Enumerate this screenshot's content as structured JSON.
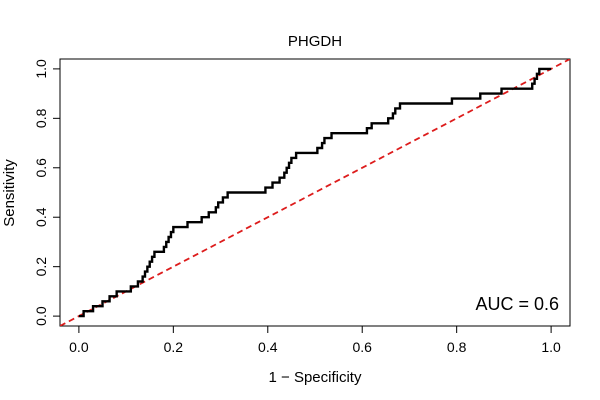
{
  "chart_data": {
    "type": "line",
    "title": "PHGDH",
    "xlabel": "1 − Specificity",
    "ylabel": "Sensitivity",
    "xlim": [
      -0.04,
      1.04
    ],
    "ylim": [
      -0.04,
      1.04
    ],
    "xticks": [
      0.0,
      0.2,
      0.4,
      0.6,
      0.8,
      1.0
    ],
    "xtick_labels": [
      "0.0",
      "0.2",
      "0.4",
      "0.6",
      "0.8",
      "1.0"
    ],
    "yticks": [
      0.0,
      0.2,
      0.4,
      0.6,
      0.8,
      1.0
    ],
    "ytick_labels": [
      "0.0",
      "0.2",
      "0.4",
      "0.6",
      "0.8",
      "1.0"
    ],
    "grid": false,
    "annotation": "AUC = 0.6",
    "series": [
      {
        "name": "ROC curve",
        "color": "#000000",
        "points": [
          [
            0.0,
            0.0
          ],
          [
            0.01,
            0.0
          ],
          [
            0.01,
            0.02
          ],
          [
            0.03,
            0.02
          ],
          [
            0.03,
            0.04
          ],
          [
            0.05,
            0.04
          ],
          [
            0.05,
            0.06
          ],
          [
            0.065,
            0.06
          ],
          [
            0.065,
            0.08
          ],
          [
            0.08,
            0.08
          ],
          [
            0.08,
            0.1
          ],
          [
            0.11,
            0.1
          ],
          [
            0.11,
            0.12
          ],
          [
            0.125,
            0.12
          ],
          [
            0.125,
            0.14
          ],
          [
            0.135,
            0.14
          ],
          [
            0.135,
            0.16
          ],
          [
            0.14,
            0.16
          ],
          [
            0.14,
            0.18
          ],
          [
            0.145,
            0.18
          ],
          [
            0.145,
            0.2
          ],
          [
            0.15,
            0.2
          ],
          [
            0.15,
            0.22
          ],
          [
            0.155,
            0.22
          ],
          [
            0.155,
            0.24
          ],
          [
            0.16,
            0.24
          ],
          [
            0.16,
            0.26
          ],
          [
            0.18,
            0.26
          ],
          [
            0.18,
            0.28
          ],
          [
            0.185,
            0.28
          ],
          [
            0.185,
            0.3
          ],
          [
            0.19,
            0.3
          ],
          [
            0.19,
            0.32
          ],
          [
            0.195,
            0.32
          ],
          [
            0.195,
            0.34
          ],
          [
            0.2,
            0.34
          ],
          [
            0.2,
            0.36
          ],
          [
            0.23,
            0.36
          ],
          [
            0.23,
            0.38
          ],
          [
            0.26,
            0.38
          ],
          [
            0.26,
            0.4
          ],
          [
            0.275,
            0.4
          ],
          [
            0.275,
            0.42
          ],
          [
            0.29,
            0.42
          ],
          [
            0.29,
            0.44
          ],
          [
            0.295,
            0.44
          ],
          [
            0.295,
            0.46
          ],
          [
            0.305,
            0.46
          ],
          [
            0.305,
            0.48
          ],
          [
            0.315,
            0.48
          ],
          [
            0.315,
            0.5
          ],
          [
            0.395,
            0.5
          ],
          [
            0.395,
            0.52
          ],
          [
            0.41,
            0.52
          ],
          [
            0.41,
            0.54
          ],
          [
            0.425,
            0.54
          ],
          [
            0.425,
            0.56
          ],
          [
            0.435,
            0.56
          ],
          [
            0.435,
            0.58
          ],
          [
            0.44,
            0.58
          ],
          [
            0.44,
            0.6
          ],
          [
            0.445,
            0.6
          ],
          [
            0.445,
            0.62
          ],
          [
            0.45,
            0.62
          ],
          [
            0.45,
            0.64
          ],
          [
            0.46,
            0.64
          ],
          [
            0.46,
            0.66
          ],
          [
            0.505,
            0.66
          ],
          [
            0.505,
            0.68
          ],
          [
            0.515,
            0.68
          ],
          [
            0.515,
            0.7
          ],
          [
            0.52,
            0.7
          ],
          [
            0.52,
            0.72
          ],
          [
            0.535,
            0.72
          ],
          [
            0.535,
            0.74
          ],
          [
            0.61,
            0.74
          ],
          [
            0.61,
            0.76
          ],
          [
            0.62,
            0.76
          ],
          [
            0.62,
            0.78
          ],
          [
            0.655,
            0.78
          ],
          [
            0.655,
            0.8
          ],
          [
            0.665,
            0.8
          ],
          [
            0.665,
            0.82
          ],
          [
            0.67,
            0.82
          ],
          [
            0.67,
            0.84
          ],
          [
            0.68,
            0.84
          ],
          [
            0.68,
            0.86
          ],
          [
            0.79,
            0.86
          ],
          [
            0.79,
            0.88
          ],
          [
            0.85,
            0.88
          ],
          [
            0.85,
            0.9
          ],
          [
            0.895,
            0.9
          ],
          [
            0.895,
            0.92
          ],
          [
            0.96,
            0.92
          ],
          [
            0.96,
            0.94
          ],
          [
            0.965,
            0.94
          ],
          [
            0.965,
            0.96
          ],
          [
            0.97,
            0.96
          ],
          [
            0.97,
            0.98
          ],
          [
            0.975,
            0.98
          ],
          [
            0.975,
            1.0
          ],
          [
            1.0,
            1.0
          ]
        ]
      },
      {
        "name": "reference line",
        "color": "#dd1c1c",
        "style": "dashed",
        "points": [
          [
            -0.04,
            -0.04
          ],
          [
            1.04,
            1.04
          ]
        ]
      }
    ]
  }
}
